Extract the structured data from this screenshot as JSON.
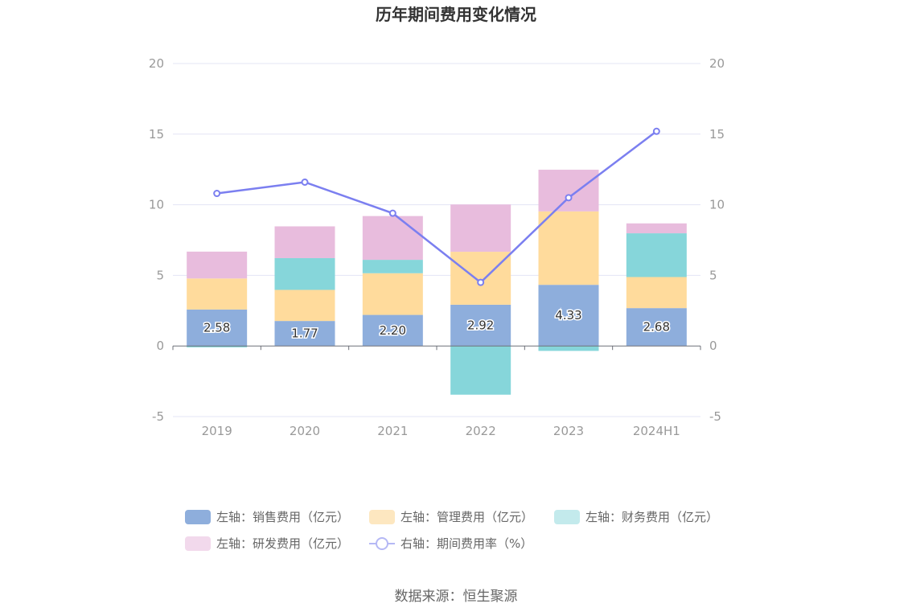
{
  "chart_data": {
    "type": "bar",
    "title": "历年期间费用变化情况",
    "categories": [
      "2019",
      "2020",
      "2021",
      "2022",
      "2023",
      "2024H1"
    ],
    "series": [
      {
        "name": "左轴：销售费用（亿元）",
        "axis": "left",
        "color": "#8eaedc",
        "values": [
          2.58,
          1.77,
          2.2,
          2.92,
          4.33,
          2.68
        ]
      },
      {
        "name": "左轴：管理费用（亿元）",
        "axis": "left",
        "color": "#ffdb9c",
        "values": [
          2.2,
          2.2,
          2.95,
          3.75,
          5.2,
          2.2
        ]
      },
      {
        "name": "左轴：财务费用（亿元）",
        "axis": "left",
        "color": "#86d6da",
        "values": [
          -0.1,
          2.25,
          0.95,
          -3.45,
          -0.35,
          3.1
        ]
      },
      {
        "name": "左轴：研发费用（亿元）",
        "axis": "left",
        "color": "#e8bcdd",
        "values": [
          1.9,
          2.25,
          3.1,
          3.35,
          2.95,
          0.7
        ]
      },
      {
        "name": "右轴：期间费用率（%）",
        "axis": "right",
        "type": "line",
        "color": "#7b7ff0",
        "values": [
          10.8,
          11.6,
          9.4,
          4.5,
          10.5,
          15.2
        ]
      }
    ],
    "data_labels": [
      "2.58",
      "1.77",
      "2.20",
      "2.92",
      "4.33",
      "2.68"
    ],
    "ylim_left": [
      -5,
      20
    ],
    "ylim_right": [
      -5,
      20
    ],
    "yticks": [
      "-5",
      "0",
      "5",
      "10",
      "15",
      "20"
    ],
    "grid": true,
    "legend_position": "bottom",
    "source": "数据来源：恒生聚源"
  }
}
